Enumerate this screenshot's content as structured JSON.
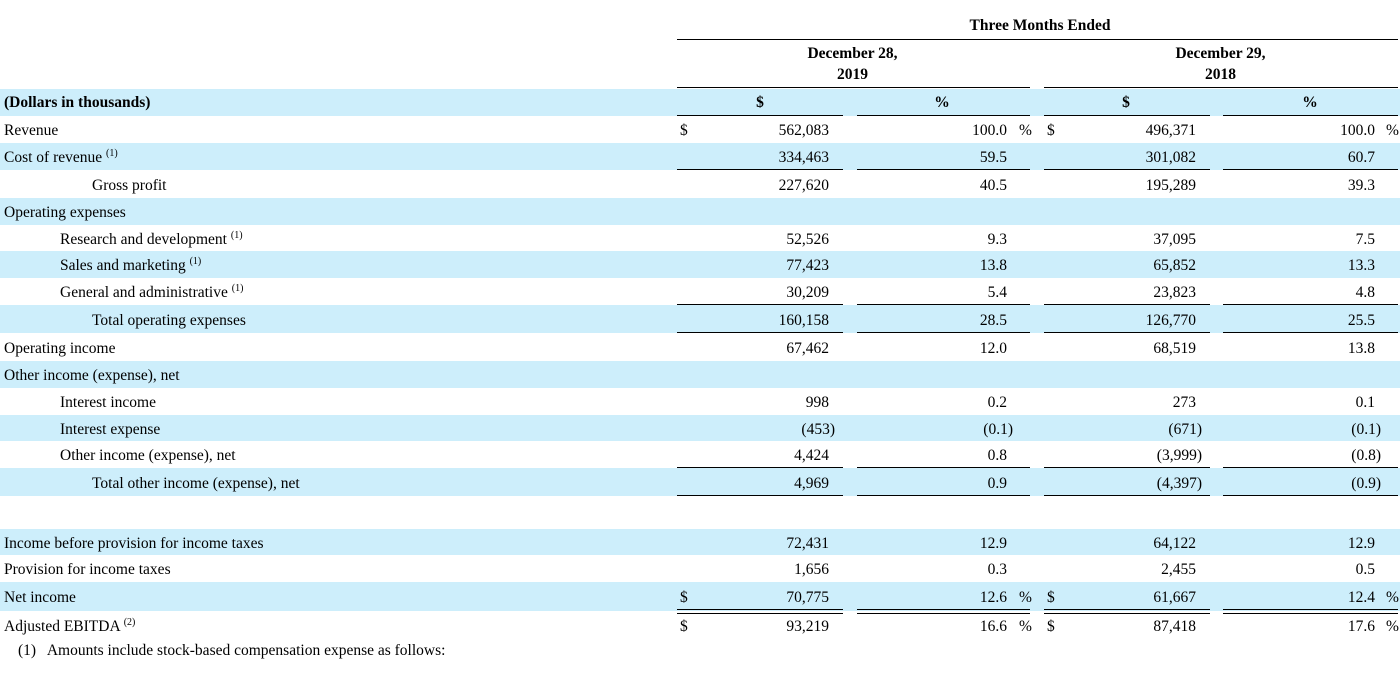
{
  "header": {
    "period": "Three Months Ended",
    "col1_line1": "December 28,",
    "col1_line2": "2019",
    "col2_line1": "December 29,",
    "col2_line2": "2018",
    "units": "(Dollars in thousands)",
    "dollar_label": "$",
    "pct_label": "%"
  },
  "currency_symbol": "$",
  "pct_sign": "%",
  "rows": [
    {
      "label": "Revenue",
      "note": "",
      "v1": "562,083",
      "p1": "100.0",
      "v2": "496,371",
      "p2": "100.0"
    },
    {
      "label": "Cost of revenue",
      "note": "(1)",
      "v1": "334,463",
      "p1": "59.5",
      "v2": "301,082",
      "p2": "60.7"
    },
    {
      "label": "Gross profit",
      "note": "",
      "v1": "227,620",
      "p1": "40.5",
      "v2": "195,289",
      "p2": "39.3"
    },
    {
      "label": "Operating expenses",
      "note": "",
      "v1": "",
      "p1": "",
      "v2": "",
      "p2": ""
    },
    {
      "label": "Research and development",
      "note": "(1)",
      "v1": "52,526",
      "p1": "9.3",
      "v2": "37,095",
      "p2": "7.5"
    },
    {
      "label": "Sales and marketing",
      "note": "(1)",
      "v1": "77,423",
      "p1": "13.8",
      "v2": "65,852",
      "p2": "13.3"
    },
    {
      "label": "General and administrative",
      "note": "(1)",
      "v1": "30,209",
      "p1": "5.4",
      "v2": "23,823",
      "p2": "4.8"
    },
    {
      "label": "Total operating expenses",
      "note": "",
      "v1": "160,158",
      "p1": "28.5",
      "v2": "126,770",
      "p2": "25.5"
    },
    {
      "label": "Operating income",
      "note": "",
      "v1": "67,462",
      "p1": "12.0",
      "v2": "68,519",
      "p2": "13.8"
    },
    {
      "label": "Other income (expense), net",
      "note": "",
      "v1": "",
      "p1": "",
      "v2": "",
      "p2": ""
    },
    {
      "label": "Interest income",
      "note": "",
      "v1": "998",
      "p1": "0.2",
      "v2": "273",
      "p2": "0.1"
    },
    {
      "label": "Interest expense",
      "note": "",
      "v1": "(453)",
      "p1": "(0.1)",
      "v2": "(671)",
      "p2": "(0.1)"
    },
    {
      "label": "Other income (expense), net",
      "note": "",
      "v1": "4,424",
      "p1": "0.8",
      "v2": "(3,999)",
      "p2": "(0.8)"
    },
    {
      "label": "Total other income (expense), net",
      "note": "",
      "v1": "4,969",
      "p1": "0.9",
      "v2": "(4,397)",
      "p2": "(0.9)"
    },
    {
      "label": "Income before provision for income taxes",
      "note": "",
      "v1": "72,431",
      "p1": "12.9",
      "v2": "64,122",
      "p2": "12.9"
    },
    {
      "label": "Provision for income taxes",
      "note": "",
      "v1": "1,656",
      "p1": "0.3",
      "v2": "2,455",
      "p2": "0.5"
    },
    {
      "label": "Net income",
      "note": "",
      "v1": "70,775",
      "p1": "12.6",
      "v2": "61,667",
      "p2": "12.4"
    },
    {
      "label": "Adjusted EBITDA",
      "note": "(2)",
      "v1": "93,219",
      "p1": "16.6",
      "v2": "87,418",
      "p2": "17.6"
    }
  ],
  "footnote": "(1)   Amounts include stock-based compensation expense as follows:",
  "colors": {
    "shade": "#cdeefb",
    "text": "#000000"
  }
}
